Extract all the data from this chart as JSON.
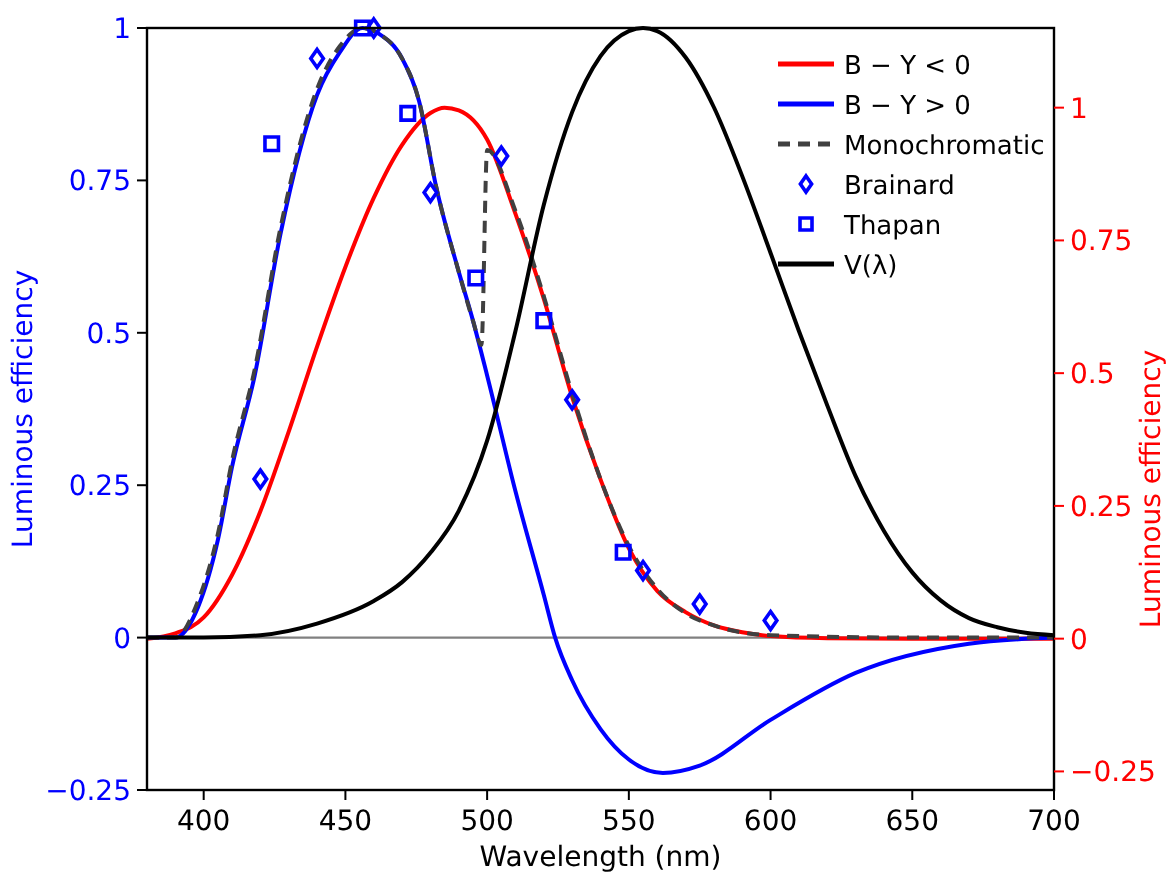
{
  "chart_data": {
    "type": "line",
    "xlabel": "Wavelength (nm)",
    "ylabel": "Luminous efficiency",
    "y2label": "Luminous efficiency",
    "xlim": [
      380,
      700
    ],
    "xticks": [
      400,
      450,
      500,
      550,
      600,
      650,
      700
    ],
    "ylim": [
      -0.25,
      1
    ],
    "yticks": [
      -0.25,
      0,
      0.25,
      0.5,
      0.75,
      1
    ],
    "y2lim": [
      -0.285,
      1.15
    ],
    "y2ticks": [
      -0.25,
      0,
      0.25,
      0.5,
      0.75,
      1
    ],
    "grid": false,
    "legend": "top right",
    "ref_lines": [
      {
        "axis": "y",
        "value": 0,
        "color": "#808080"
      }
    ],
    "series": [
      {
        "name": "B − Y < 0",
        "axis": "y2",
        "color": "#ff0000",
        "marker": "none",
        "line_style": "solid",
        "x": [
          380,
          390,
          400,
          410,
          420,
          430,
          440,
          450,
          460,
          470,
          480,
          485,
          490,
          500,
          510,
          520,
          530,
          540,
          550,
          560,
          570,
          580,
          590,
          600,
          620,
          650,
          700
        ],
        "values": [
          0,
          0.01,
          0.04,
          0.12,
          0.24,
          0.39,
          0.55,
          0.7,
          0.83,
          0.93,
          0.99,
          1,
          0.995,
          0.94,
          0.8,
          0.64,
          0.455,
          0.3,
          0.17,
          0.09,
          0.05,
          0.025,
          0.012,
          0.005,
          0.001,
          0,
          0
        ]
      },
      {
        "name": "B − Y > 0",
        "axis": "y",
        "color": "#0000ff",
        "marker": "none",
        "line_style": "solid",
        "x": [
          380,
          390,
          398,
          405,
          410,
          418,
          427,
          440,
          448,
          456,
          462,
          470,
          476,
          482,
          490,
          495,
          500,
          510,
          520,
          524,
          530,
          540,
          550,
          562,
          575,
          600,
          630,
          670,
          700
        ],
        "values": [
          0,
          0,
          0.05,
          0.16,
          0.28,
          0.43,
          0.66,
          0.89,
          0.96,
          1,
          0.99,
          0.95,
          0.88,
          0.74,
          0.6,
          0.52,
          0.43,
          0.24,
          0.07,
          0,
          -0.07,
          -0.15,
          -0.2,
          -0.222,
          -0.21,
          -0.135,
          -0.058,
          -0.01,
          0
        ]
      },
      {
        "name": "Monochromatic",
        "axis": "y",
        "color": "#404040",
        "marker": "none",
        "line_style": "dashed",
        "x": [
          380,
          390,
          398,
          405,
          410,
          418,
          427,
          440,
          448,
          456,
          462,
          470,
          476,
          482,
          490,
          495,
          498,
          500,
          510,
          520,
          530,
          540,
          550,
          560,
          570,
          580,
          600,
          650,
          700
        ],
        "values": [
          0,
          0,
          0.06,
          0.17,
          0.29,
          0.44,
          0.67,
          0.9,
          0.97,
          1,
          0.99,
          0.95,
          0.88,
          0.74,
          0.6,
          0.52,
          0.48,
          0.8,
          0.7,
          0.56,
          0.4,
          0.26,
          0.15,
          0.08,
          0.04,
          0.02,
          0.004,
          0,
          0
        ]
      },
      {
        "name": "Brainard",
        "type": "scatter",
        "axis": "y",
        "color": "#0000ff",
        "marker": "diamond",
        "x": [
          420,
          440,
          460,
          480,
          505,
          530,
          555,
          575,
          600
        ],
        "values": [
          0.26,
          0.95,
          1,
          0.73,
          0.79,
          0.39,
          0.11,
          0.055,
          0.028
        ]
      },
      {
        "name": "Thapan",
        "type": "scatter",
        "axis": "y",
        "color": "#0000ff",
        "marker": "square",
        "x": [
          424,
          456,
          472,
          496,
          520,
          548
        ],
        "values": [
          0.81,
          1,
          0.86,
          0.59,
          0.52,
          0.14
        ]
      },
      {
        "name": "V(λ)",
        "axis": "y",
        "color": "#000000",
        "marker": "none",
        "line_style": "solid",
        "x": [
          380,
          400,
          420,
          440,
          460,
          470,
          480,
          490,
          500,
          510,
          520,
          530,
          540,
          550,
          555,
          560,
          570,
          580,
          590,
          600,
          610,
          620,
          630,
          640,
          650,
          660,
          670,
          680,
          690,
          700
        ],
        "values": [
          0,
          0,
          0.004,
          0.023,
          0.06,
          0.091,
          0.139,
          0.208,
          0.323,
          0.503,
          0.71,
          0.862,
          0.954,
          0.995,
          1,
          0.995,
          0.952,
          0.87,
          0.757,
          0.631,
          0.503,
          0.381,
          0.265,
          0.175,
          0.107,
          0.061,
          0.032,
          0.017,
          0.008,
          0.004
        ]
      }
    ]
  }
}
